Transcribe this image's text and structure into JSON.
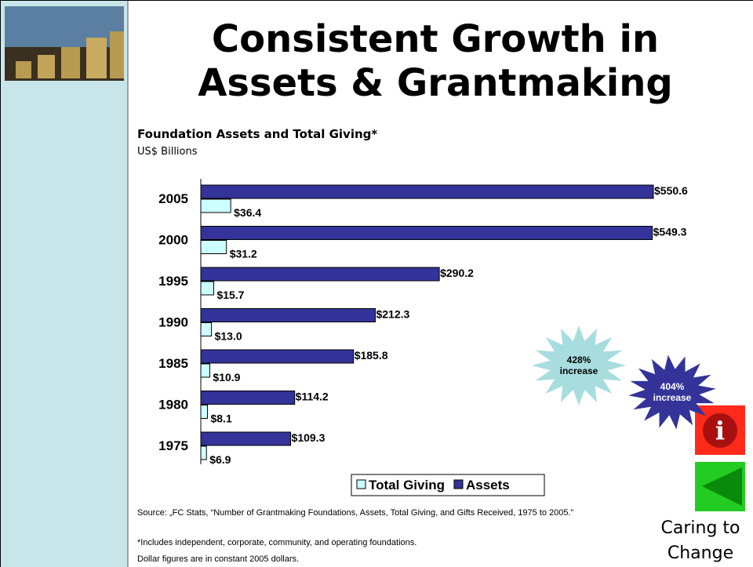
{
  "title": "Consistent Growth in Assets & Grantmaking",
  "chart_data": {
    "type": "bar",
    "orientation": "horizontal",
    "title": "Foundation Assets and Total Giving*",
    "subtitle": "US$ Billions",
    "categories": [
      "2005",
      "2000",
      "1995",
      "1990",
      "1985",
      "1980",
      "1975"
    ],
    "series": [
      {
        "name": "Total Giving",
        "color": "#ccffff",
        "values": [
          36.4,
          31.2,
          15.7,
          13.0,
          10.9,
          8.1,
          6.9
        ],
        "value_labels": [
          "$36.4",
          "$31.2",
          "$15.7",
          "$13.0",
          "$10.9",
          "$8.1",
          "$6.9"
        ]
      },
      {
        "name": "Assets",
        "color": "#333399",
        "values": [
          550.6,
          549.3,
          290.2,
          212.3,
          185.8,
          114.2,
          109.3
        ],
        "value_labels": [
          "$550.6",
          "$549.3",
          "$290.2",
          "$212.3",
          "$185.8",
          "$114.2",
          "$109.3"
        ]
      }
    ],
    "annotations": [
      {
        "text": "428% increase",
        "color": "#a8dde0"
      },
      {
        "text": "404% increase",
        "color": "#333399"
      }
    ]
  },
  "source": "Source: „FC Stats, “Number of Grantmaking Foundations, Assets, Total Giving, and Gifts Received, 1975 to 2005.”",
  "notes": [
    "*Includes independent, corporate, community, and operating foundations.",
    "Dollar figures are in constant 2005 dollars."
  ],
  "caption": "Caring to Change"
}
